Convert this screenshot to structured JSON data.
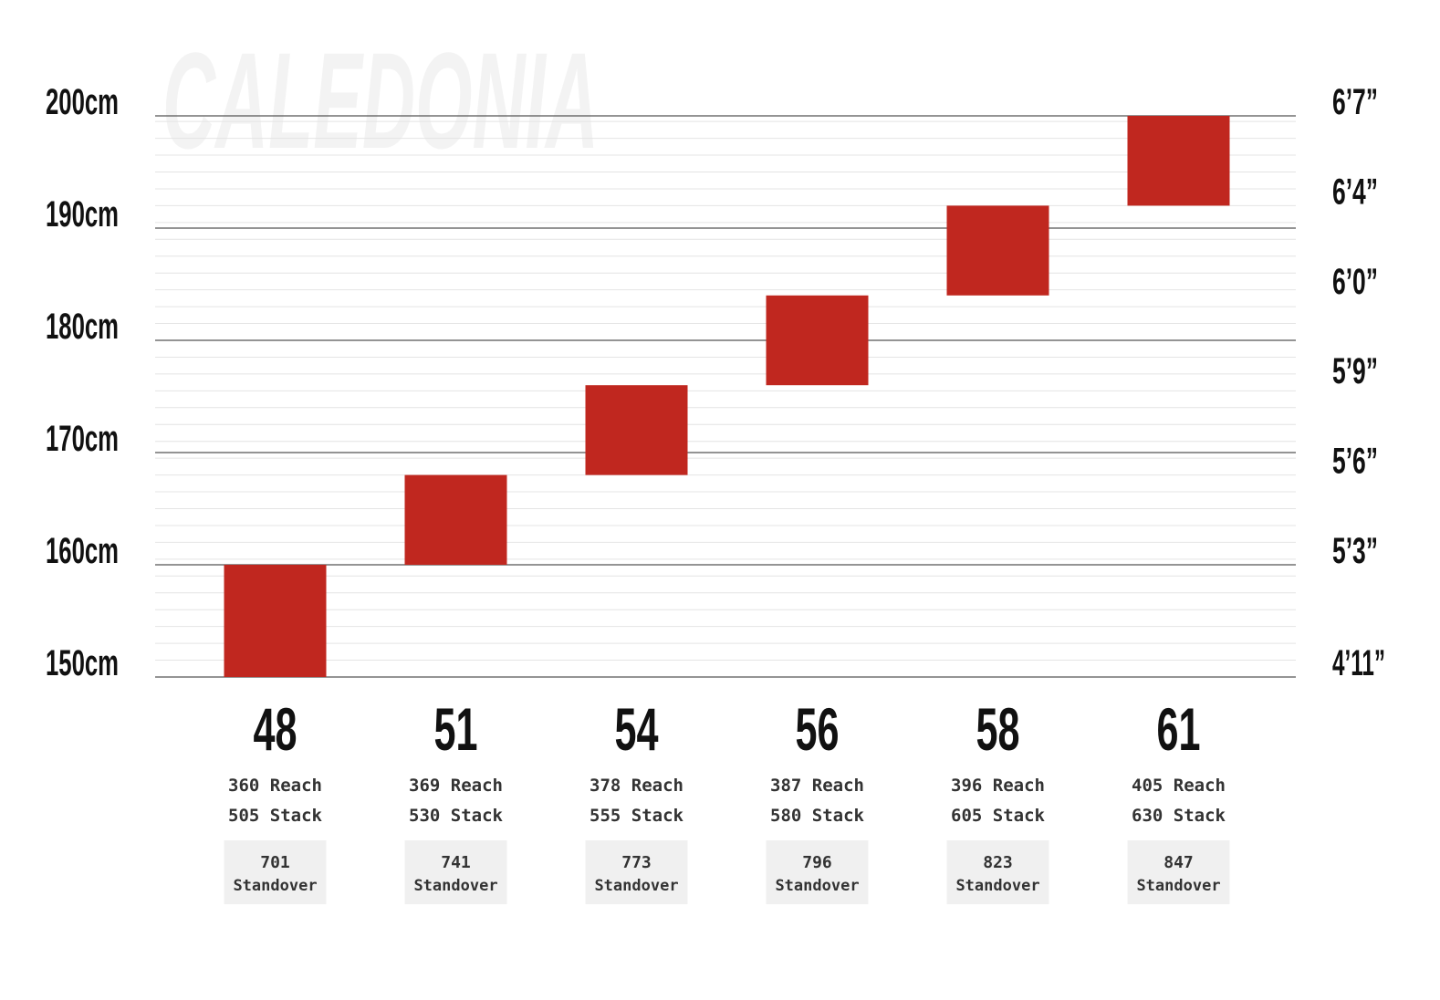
{
  "watermark": "CALEDONIA",
  "colors": {
    "bar": "#c0271f",
    "major_grid": "#555555",
    "minor_grid": "#e4e4e4",
    "label": "#111111",
    "spec_text": "#333333",
    "standover_bg": "#f0f0f0",
    "watermark": "#f3f3f3"
  },
  "chart_data": {
    "type": "bar",
    "subtype": "floating-range",
    "ylim": [
      150,
      200
    ],
    "y_unit": "cm",
    "left_ticks": [
      {
        "value": 200,
        "label": "200cm"
      },
      {
        "value": 190,
        "label": "190cm"
      },
      {
        "value": 180,
        "label": "180cm"
      },
      {
        "value": 170,
        "label": "170cm"
      },
      {
        "value": 160,
        "label": "160cm"
      },
      {
        "value": 150,
        "label": "150cm"
      }
    ],
    "right_ticks": [
      {
        "value": 200,
        "label": "6’7”"
      },
      {
        "value": 192,
        "label": "6’4”"
      },
      {
        "value": 184,
        "label": "6’0”"
      },
      {
        "value": 176,
        "label": "5’9”"
      },
      {
        "value": 168,
        "label": "5’6”"
      },
      {
        "value": 160,
        "label": "5’3”"
      },
      {
        "value": 150,
        "label": "4’11”"
      }
    ],
    "minor_grid_step": 1.5,
    "sizes": [
      {
        "size": "48",
        "low": 150,
        "high": 160,
        "reach": "360",
        "stack": "505",
        "standover": "701"
      },
      {
        "size": "51",
        "low": 160,
        "high": 168,
        "reach": "369",
        "stack": "530",
        "standover": "741"
      },
      {
        "size": "54",
        "low": 168,
        "high": 176,
        "reach": "378",
        "stack": "555",
        "standover": "773"
      },
      {
        "size": "56",
        "low": 176,
        "high": 184,
        "reach": "387",
        "stack": "580",
        "standover": "796"
      },
      {
        "size": "58",
        "low": 184,
        "high": 192,
        "reach": "396",
        "stack": "605",
        "standover": "823"
      },
      {
        "size": "61",
        "low": 192,
        "high": 200,
        "reach": "405",
        "stack": "630",
        "standover": "847"
      }
    ],
    "labels": {
      "reach": "Reach",
      "stack": "Stack",
      "standover": "Standover"
    }
  }
}
